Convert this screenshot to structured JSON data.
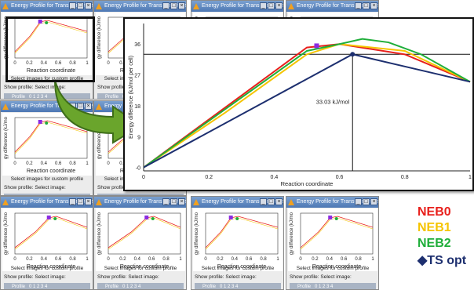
{
  "window_title": "Energy Profile for Transition State",
  "panel": {
    "select_label": "Select images for custom profile",
    "show_profile": "Show profile:",
    "select_image": "Select image:",
    "profile_label": "Profile",
    "profile_indices": "0 1 2 3 4"
  },
  "mini_axis": {
    "xlabel": "Reaction coordinate",
    "ylabel": "gy difference (kJ/mo",
    "xticks": [
      "0",
      "0.2",
      "0.4",
      "0.6",
      "0.8",
      "1"
    ]
  },
  "zoom_plot": {
    "ylabel": "Energy difference (kJ/mol per cell)",
    "xlabel": "Reaction coordinate",
    "annotation": "33.03 kJ/mol",
    "chart_data": {
      "type": "line",
      "xlim": [
        0,
        1
      ],
      "ylim": [
        -1,
        42
      ],
      "xticks": [
        "0",
        "0.2",
        "0.4",
        "0.6",
        "0.8",
        "1"
      ],
      "yticks": [
        "-0",
        "9",
        "18",
        "27",
        "36"
      ],
      "series": [
        {
          "name": "NEB0",
          "color": "#e8201c",
          "x": [
            0,
            0.5,
            0.6,
            0.8,
            1
          ],
          "y": [
            0,
            35,
            36,
            33,
            25
          ]
        },
        {
          "name": "NEB1",
          "color": "#f5c400",
          "x": [
            0,
            0.25,
            0.5,
            0.6,
            0.8,
            1
          ],
          "y": [
            0,
            16,
            33,
            36,
            34,
            25
          ]
        },
        {
          "name": "NEB2",
          "color": "#1fae3a",
          "x": [
            0,
            0.5,
            0.6,
            0.67,
            0.75,
            0.85,
            1
          ],
          "y": [
            0,
            34,
            36,
            37.5,
            36.5,
            33,
            25
          ]
        },
        {
          "name": "TS opt",
          "color": "#1d2f6f",
          "x": [
            0,
            0.64,
            1
          ],
          "y": [
            0,
            33.03,
            25
          ]
        }
      ],
      "ts_point": {
        "x": 0.64,
        "y": 33.03
      },
      "reference_y": 33.03
    }
  },
  "legend": [
    {
      "label": "NEB0",
      "color": "#e8201c"
    },
    {
      "label": "NEB1",
      "color": "#f5c400"
    },
    {
      "label": "NEB2",
      "color": "#1fae3a"
    },
    {
      "label": "◆TS opt",
      "color": "#1d2f6f"
    }
  ]
}
